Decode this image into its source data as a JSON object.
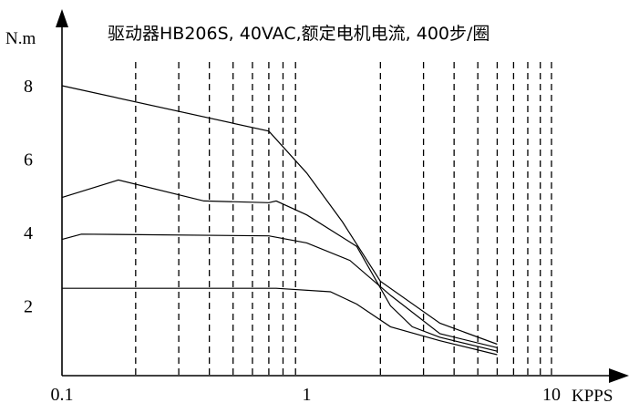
{
  "chart_data": {
    "type": "line",
    "title": "驱动器HB206S, 40VAC,额定电机电流, 400步/圈",
    "xlabel": "KPPS",
    "ylabel": "N.m",
    "xscale": "log",
    "xlim": [
      0.1,
      12
    ],
    "ylim": [
      0,
      9.5
    ],
    "x_tick_labels": [
      "0.1",
      "1",
      "10"
    ],
    "x_ticks": [
      0.1,
      1,
      10
    ],
    "y_tick_labels": [
      "8",
      "6",
      "4",
      "2"
    ],
    "y_ticks": [
      8.3,
      6.2,
      4.1,
      2.0
    ],
    "grid": "vertical dashed lines at 0.2, 0.3, …, 0.9, 2, 3, …, 9, 10",
    "legend": "none",
    "series": [
      {
        "x": [
          0.1,
          0.7,
          1.0,
          1.4,
          2.0,
          3.5,
          6.0
        ],
        "y": [
          8.3,
          7.0,
          5.8,
          4.4,
          2.7,
          1.5,
          0.9
        ]
      },
      {
        "x": [
          0.1,
          0.17,
          0.38,
          0.7,
          0.75,
          1.0,
          1.6,
          2.2,
          2.7,
          3.5,
          6.0
        ],
        "y": [
          5.1,
          5.6,
          5.0,
          4.95,
          5.0,
          4.6,
          3.7,
          2.0,
          1.4,
          1.1,
          0.7
        ]
      },
      {
        "x": [
          0.1,
          0.12,
          0.7,
          1.0,
          1.5,
          2.2,
          3.5,
          6.0
        ],
        "y": [
          3.9,
          4.05,
          4.0,
          3.8,
          3.3,
          2.3,
          1.2,
          0.8
        ]
      },
      {
        "x": [
          0.1,
          0.75,
          1.25,
          1.6,
          2.2,
          3.5,
          6.0
        ],
        "y": [
          2.5,
          2.5,
          2.4,
          2.05,
          1.4,
          1.0,
          0.6
        ]
      }
    ]
  }
}
